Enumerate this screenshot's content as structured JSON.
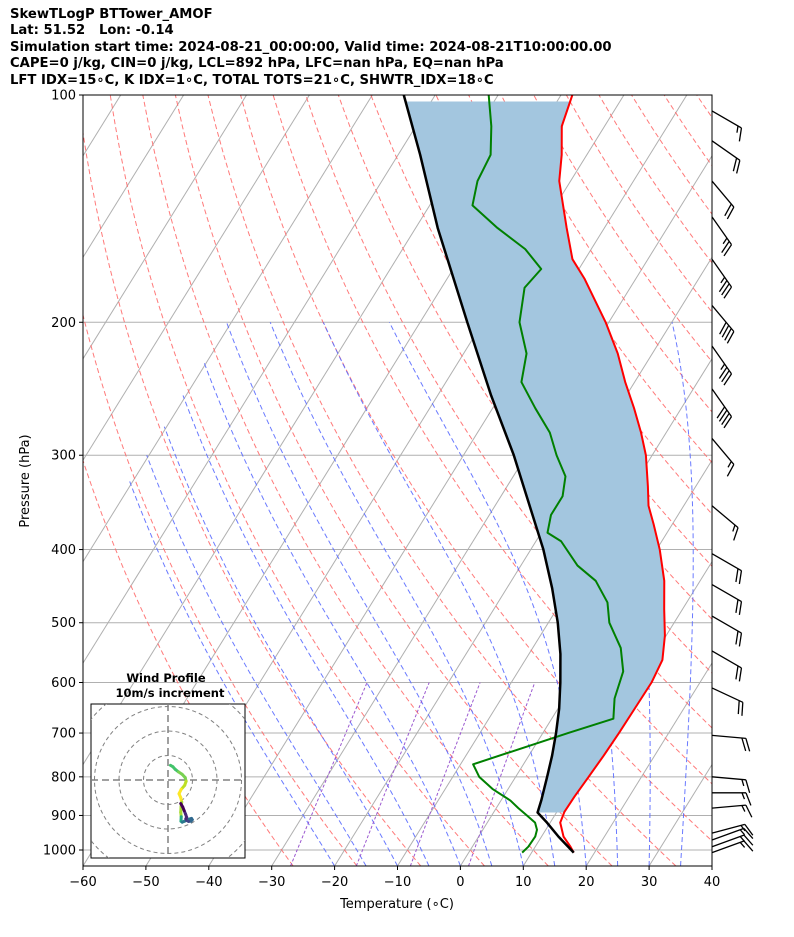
{
  "header": {
    "line1": "SkewTLogP BTTower_AMOF",
    "line2": "Lat: 51.52   Lon: -0.14",
    "line3": "Simulation start time: 2024-08-21_00:00:00, Valid time: 2024-08-21T10:00:00.00",
    "line4": "CAPE=0 j/kg, CIN=0 j/kg, LCL=892 hPa, LFC=nan hPa, EQ=nan hPa",
    "line5": "LFT IDX=15∘C, K IDX=1∘C, TOTAL TOTS=21∘C, SHWTR_IDX=18∘C"
  },
  "inset": {
    "title": "Wind Profile",
    "subtitle": "10m/s increment"
  },
  "colors": {
    "temperature": "#ff0000",
    "dewpoint": "#008000",
    "parcel": "#000000",
    "cape_fill": "#a3c6df",
    "dry_adiabat": "#ff6b6b",
    "moist_adiabat": "#5a6bff",
    "mixing_ratio": "#9b59d0",
    "isotherm": "#b0b0b0"
  },
  "chart_data": {
    "type": "skewt",
    "xlabel": "Temperature (∘C)",
    "ylabel": "Pressure (hPa)",
    "xlim": [
      -60,
      40
    ],
    "ylim": [
      1050,
      100
    ],
    "x_ticks": [
      "−60",
      "−50",
      "−40",
      "−30",
      "−20",
      "−10",
      "0",
      "10",
      "20",
      "30",
      "40"
    ],
    "y_ticks": [
      "100",
      "200",
      "300",
      "400",
      "500",
      "600",
      "700",
      "800",
      "900",
      "1000"
    ],
    "series": [
      {
        "key": "temperature",
        "points": [
          [
            1008,
            16.7
          ],
          [
            990,
            15.6
          ],
          [
            960,
            13.5
          ],
          [
            920,
            11.6
          ],
          [
            890,
            11.2
          ],
          [
            850,
            11.3
          ],
          [
            800,
            11.6
          ],
          [
            750,
            11.9
          ],
          [
            700,
            12.1
          ],
          [
            650,
            12.2
          ],
          [
            600,
            12.3
          ],
          [
            560,
            11.8
          ],
          [
            520,
            9.8
          ],
          [
            480,
            7.1
          ],
          [
            440,
            4.3
          ],
          [
            400,
            0.5
          ],
          [
            370,
            -3.0
          ],
          [
            350,
            -5.6
          ],
          [
            330,
            -7.6
          ],
          [
            300,
            -11.0
          ],
          [
            280,
            -14.0
          ],
          [
            260,
            -17.5
          ],
          [
            240,
            -21.5
          ],
          [
            220,
            -25.5
          ],
          [
            200,
            -30.5
          ],
          [
            185,
            -35.0
          ],
          [
            175,
            -38.2
          ],
          [
            165,
            -42.0
          ],
          [
            150,
            -46.0
          ],
          [
            140,
            -48.8
          ],
          [
            130,
            -51.8
          ],
          [
            120,
            -54.0
          ],
          [
            110,
            -56.8
          ],
          [
            100,
            -58.2
          ]
        ]
      },
      {
        "key": "dewpoint",
        "points": [
          [
            1008,
            8.5
          ],
          [
            990,
            8.9
          ],
          [
            960,
            9.0
          ],
          [
            940,
            8.6
          ],
          [
            920,
            7.6
          ],
          [
            900,
            5.6
          ],
          [
            880,
            3.5
          ],
          [
            860,
            1.5
          ],
          [
            830,
            -2.5
          ],
          [
            800,
            -5.8
          ],
          [
            770,
            -8.0
          ],
          [
            740,
            -3.0
          ],
          [
            700,
            4.0
          ],
          [
            670,
            9.8
          ],
          [
            630,
            8.0
          ],
          [
            580,
            6.7
          ],
          [
            540,
            4.0
          ],
          [
            500,
            -0.3
          ],
          [
            470,
            -2.6
          ],
          [
            440,
            -6.6
          ],
          [
            420,
            -11.0
          ],
          [
            390,
            -16.0
          ],
          [
            380,
            -19.0
          ],
          [
            360,
            -20.2
          ],
          [
            340,
            -20.2
          ],
          [
            320,
            -21.7
          ],
          [
            300,
            -25.2
          ],
          [
            280,
            -28.5
          ],
          [
            260,
            -33.2
          ],
          [
            240,
            -38.0
          ],
          [
            220,
            -40.0
          ],
          [
            200,
            -44.2
          ],
          [
            180,
            -46.8
          ],
          [
            170,
            -46.0
          ],
          [
            160,
            -50.5
          ],
          [
            150,
            -57.0
          ],
          [
            140,
            -63.2
          ],
          [
            130,
            -64.8
          ],
          [
            120,
            -65.3
          ],
          [
            110,
            -68.0
          ],
          [
            100,
            -71.5
          ]
        ]
      },
      {
        "key": "parcel",
        "points": [
          [
            1008,
            16.7
          ],
          [
            960,
            12.7
          ],
          [
            920,
            9.5
          ],
          [
            892,
            7.0
          ],
          [
            860,
            6.4
          ],
          [
            800,
            5.0
          ],
          [
            750,
            3.7
          ],
          [
            700,
            2.1
          ],
          [
            650,
            0.2
          ],
          [
            600,
            -2.2
          ],
          [
            550,
            -5.0
          ],
          [
            500,
            -8.5
          ],
          [
            450,
            -12.8
          ],
          [
            400,
            -18.0
          ],
          [
            350,
            -24.5
          ],
          [
            300,
            -32.0
          ],
          [
            250,
            -41.5
          ],
          [
            200,
            -52.5
          ],
          [
            150,
            -66.5
          ],
          [
            120,
            -76.5
          ],
          [
            100,
            -85.0
          ]
        ]
      }
    ],
    "wind_barbs": [
      {
        "p": 1008,
        "speed_kt": 15,
        "dir_deg": 250
      },
      {
        "p": 990,
        "speed_kt": 15,
        "dir_deg": 250
      },
      {
        "p": 970,
        "speed_kt": 15,
        "dir_deg": 250
      },
      {
        "p": 950,
        "speed_kt": 15,
        "dir_deg": 255
      },
      {
        "p": 880,
        "speed_kt": 15,
        "dir_deg": 265
      },
      {
        "p": 840,
        "speed_kt": 15,
        "dir_deg": 270
      },
      {
        "p": 800,
        "speed_kt": 15,
        "dir_deg": 275
      },
      {
        "p": 705,
        "speed_kt": 20,
        "dir_deg": 275
      },
      {
        "p": 610,
        "speed_kt": 20,
        "dir_deg": 295
      },
      {
        "p": 545,
        "speed_kt": 20,
        "dir_deg": 300
      },
      {
        "p": 490,
        "speed_kt": 20,
        "dir_deg": 300
      },
      {
        "p": 445,
        "speed_kt": 20,
        "dir_deg": 300
      },
      {
        "p": 405,
        "speed_kt": 20,
        "dir_deg": 300
      },
      {
        "p": 350,
        "speed_kt": 15,
        "dir_deg": 310
      },
      {
        "p": 285,
        "speed_kt": 15,
        "dir_deg": 320
      },
      {
        "p": 245,
        "speed_kt": 40,
        "dir_deg": 325
      },
      {
        "p": 215,
        "speed_kt": 35,
        "dir_deg": 325
      },
      {
        "p": 190,
        "speed_kt": 40,
        "dir_deg": 320
      },
      {
        "p": 165,
        "speed_kt": 35,
        "dir_deg": 325
      },
      {
        "p": 145,
        "speed_kt": 25,
        "dir_deg": 325
      },
      {
        "p": 130,
        "speed_kt": 20,
        "dir_deg": 320
      },
      {
        "p": 115,
        "speed_kt": 20,
        "dir_deg": 305
      },
      {
        "p": 105,
        "speed_kt": 15,
        "dir_deg": 300
      }
    ],
    "hodograph": {
      "ring_increment_ms": 10,
      "rings": 4,
      "points": [
        [
          1.0,
          6.0
        ],
        [
          2.0,
          5.4
        ],
        [
          3.0,
          4.3
        ],
        [
          4.3,
          3.3
        ],
        [
          5.8,
          2.3
        ],
        [
          7.0,
          1.0
        ],
        [
          7.4,
          -0.5
        ],
        [
          6.8,
          -2.2
        ],
        [
          5.4,
          -3.8
        ],
        [
          4.5,
          -5.6
        ],
        [
          5.2,
          -7.2
        ],
        [
          5.6,
          -9.0
        ],
        [
          5.3,
          -11.0
        ],
        [
          5.2,
          -13.2
        ],
        [
          5.4,
          -15.0
        ],
        [
          5.3,
          -16.8
        ],
        [
          5.8,
          -17.2
        ],
        [
          6.8,
          -16.8
        ],
        [
          8.5,
          -16.0
        ],
        [
          9.6,
          -15.7
        ],
        [
          9.9,
          -16.2
        ],
        [
          9.4,
          -16.8
        ],
        [
          8.4,
          -16.9
        ],
        [
          7.6,
          -16.5
        ],
        [
          7.3,
          -15.8
        ],
        [
          7.6,
          -15.2
        ],
        [
          7.2,
          -14.0
        ],
        [
          6.6,
          -12.5
        ],
        [
          6.0,
          -11.0
        ],
        [
          5.2,
          -9.6
        ]
      ]
    }
  }
}
